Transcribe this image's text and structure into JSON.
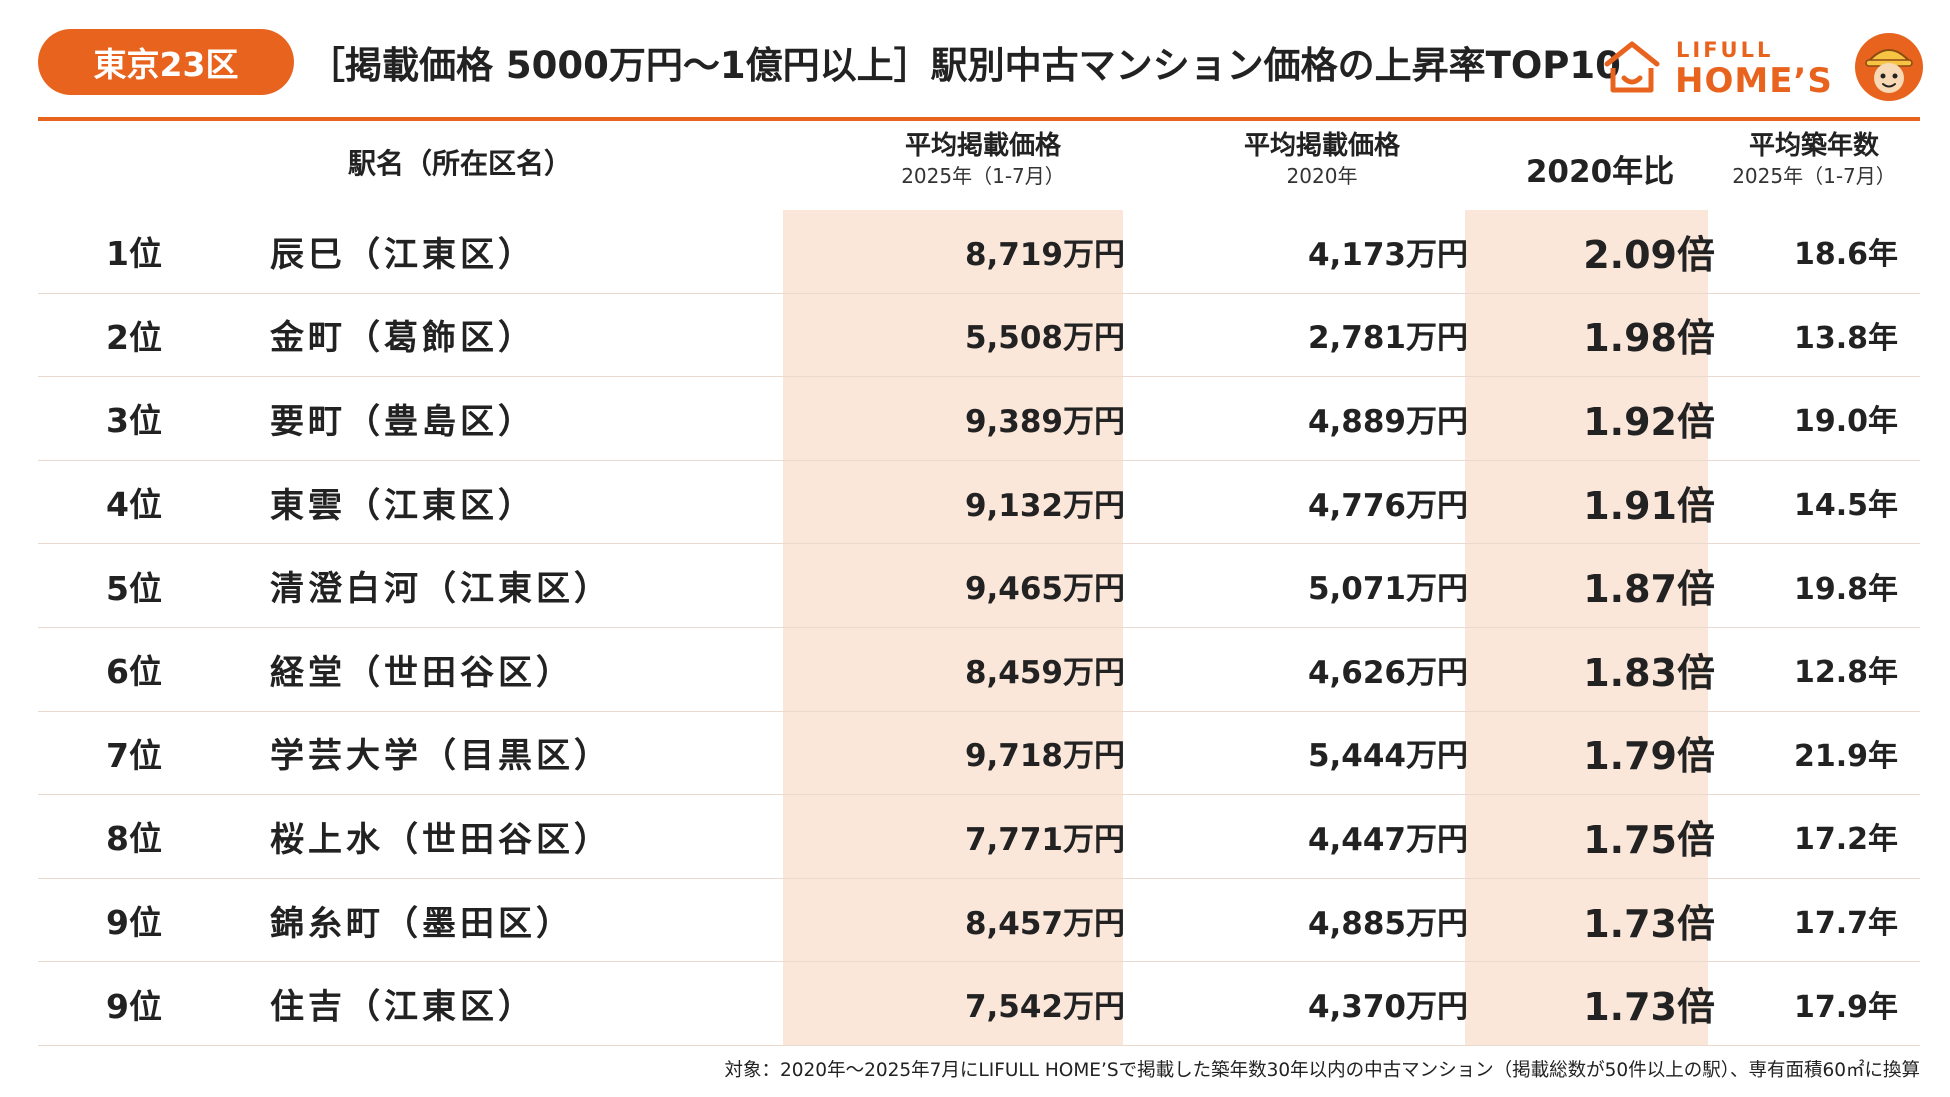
{
  "header": {
    "badge": "東京23区",
    "title": "［掲載価格 5000万円～1億円以上］駅別中古マンション価格の上昇率TOP10",
    "logo_top": "LIFULL",
    "logo_main": "HOME’S"
  },
  "columns": {
    "station": "駅名（所在区名）",
    "price_2025_line1": "平均掲載価格",
    "price_2025_line2": "2025年（1-7月）",
    "price_2020_line1": "平均掲載価格",
    "price_2020_line2": "2020年",
    "ratio": "2020年比",
    "age_line1": "平均築年数",
    "age_line2": "2025年（1-7月）"
  },
  "rows": [
    {
      "rank": "1位",
      "station": "辰巳（江東区）",
      "price_2025": "8,719万円",
      "price_2020": "4,173万円",
      "ratio": "2.09倍",
      "age": "18.6年"
    },
    {
      "rank": "2位",
      "station": "金町（葛飾区）",
      "price_2025": "5,508万円",
      "price_2020": "2,781万円",
      "ratio": "1.98倍",
      "age": "13.8年"
    },
    {
      "rank": "3位",
      "station": "要町（豊島区）",
      "price_2025": "9,389万円",
      "price_2020": "4,889万円",
      "ratio": "1.92倍",
      "age": "19.0年"
    },
    {
      "rank": "4位",
      "station": "東雲（江東区）",
      "price_2025": "9,132万円",
      "price_2020": "4,776万円",
      "ratio": "1.91倍",
      "age": "14.5年"
    },
    {
      "rank": "5位",
      "station": "清澄白河（江東区）",
      "price_2025": "9,465万円",
      "price_2020": "5,071万円",
      "ratio": "1.87倍",
      "age": "19.8年"
    },
    {
      "rank": "6位",
      "station": "経堂（世田谷区）",
      "price_2025": "8,459万円",
      "price_2020": "4,626万円",
      "ratio": "1.83倍",
      "age": "12.8年"
    },
    {
      "rank": "7位",
      "station": "学芸大学（目黒区）",
      "price_2025": "9,718万円",
      "price_2020": "5,444万円",
      "ratio": "1.79倍",
      "age": "21.9年"
    },
    {
      "rank": "8位",
      "station": "桜上水（世田谷区）",
      "price_2025": "7,771万円",
      "price_2020": "4,447万円",
      "ratio": "1.75倍",
      "age": "17.2年"
    },
    {
      "rank": "9位",
      "station": "錦糸町（墨田区）",
      "price_2025": "8,457万円",
      "price_2020": "4,885万円",
      "ratio": "1.73倍",
      "age": "17.7年"
    },
    {
      "rank": "9位",
      "station": "住吉（江東区）",
      "price_2025": "7,542万円",
      "price_2020": "4,370万円",
      "ratio": "1.73倍",
      "age": "17.9年"
    }
  ],
  "footnote": "対象：2020年～2025年7月にLIFULL HOME’Sで掲載した築年数30年以内の中古マンション（掲載総数が50件以上の駅）、専有面積60㎡に換算",
  "colors": {
    "accent": "#e8641e",
    "highlight": "#fbe6da",
    "row_divider": "#e9d9ce"
  },
  "icons": {
    "logo": "house-logo-icon",
    "mascot": "mascot-character-icon"
  }
}
